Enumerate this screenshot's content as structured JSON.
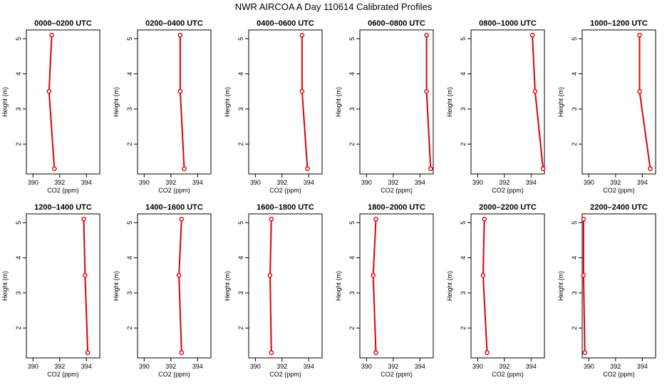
{
  "figure": {
    "title": "NWR AIRCOA A  Day 110614  Calibrated Profiles",
    "colors": {
      "line": "#e00000",
      "axis": "#000000",
      "background": "#ffffff"
    }
  },
  "chart_data": [
    {
      "type": "line",
      "title": "0000–0200 UTC",
      "xlabel": "CO2 (ppm)",
      "ylabel": "Height (m)",
      "xlim": [
        389.5,
        395.0
      ],
      "ylim": [
        1.15,
        5.25
      ],
      "xticks": [
        390,
        392,
        394
      ],
      "yticks": [
        2,
        3,
        4,
        5
      ],
      "grid": false,
      "series": [
        {
          "x": [
            391.4,
            391.2,
            391.6
          ],
          "y": [
            5.1,
            3.5,
            1.3
          ]
        }
      ]
    },
    {
      "type": "line",
      "title": "0200–0400 UTC",
      "xlabel": "CO2 (ppm)",
      "ylabel": "Height (m)",
      "xlim": [
        389.5,
        395.0
      ],
      "ylim": [
        1.15,
        5.25
      ],
      "xticks": [
        390,
        392,
        394
      ],
      "yticks": [
        2,
        3,
        4,
        5
      ],
      "grid": false,
      "series": [
        {
          "x": [
            392.7,
            392.7,
            393.0
          ],
          "y": [
            5.1,
            3.5,
            1.3
          ]
        }
      ]
    },
    {
      "type": "line",
      "title": "0400–0600 UTC",
      "xlabel": "CO2 (ppm)",
      "ylabel": "Height (m)",
      "xlim": [
        389.5,
        395.0
      ],
      "ylim": [
        1.15,
        5.25
      ],
      "xticks": [
        390,
        392,
        394
      ],
      "yticks": [
        2,
        3,
        4,
        5
      ],
      "grid": false,
      "series": [
        {
          "x": [
            393.5,
            393.5,
            393.9
          ],
          "y": [
            5.1,
            3.5,
            1.3
          ]
        }
      ]
    },
    {
      "type": "line",
      "title": "0600–0800 UTC",
      "xlabel": "CO2 (ppm)",
      "ylabel": "Height (m)",
      "xlim": [
        389.5,
        395.0
      ],
      "ylim": [
        1.15,
        5.25
      ],
      "xticks": [
        390,
        392,
        394
      ],
      "yticks": [
        2,
        3,
        4,
        5
      ],
      "grid": false,
      "series": [
        {
          "x": [
            394.5,
            394.5,
            394.8
          ],
          "y": [
            5.1,
            3.5,
            1.3
          ]
        }
      ]
    },
    {
      "type": "line",
      "title": "0800–1000 UTC",
      "xlabel": "CO2 (ppm)",
      "ylabel": "Height (m)",
      "xlim": [
        389.5,
        395.0
      ],
      "ylim": [
        1.15,
        5.25
      ],
      "xticks": [
        390,
        392,
        394
      ],
      "yticks": [
        2,
        3,
        4,
        5
      ],
      "grid": false,
      "series": [
        {
          "x": [
            394.1,
            394.3,
            394.9
          ],
          "y": [
            5.1,
            3.5,
            1.3
          ]
        }
      ]
    },
    {
      "type": "line",
      "title": "1000–1200 UTC",
      "xlabel": "CO2 (ppm)",
      "ylabel": "Height (m)",
      "xlim": [
        389.5,
        395.0
      ],
      "ylim": [
        1.15,
        5.25
      ],
      "xticks": [
        390,
        392,
        394
      ],
      "yticks": [
        2,
        3,
        4,
        5
      ],
      "grid": false,
      "series": [
        {
          "x": [
            393.8,
            393.8,
            394.6
          ],
          "y": [
            5.1,
            3.5,
            1.3
          ]
        }
      ]
    },
    {
      "type": "line",
      "title": "1200–1400 UTC",
      "xlabel": "CO2 (ppm)",
      "ylabel": "Height (m)",
      "xlim": [
        389.5,
        395.0
      ],
      "ylim": [
        1.15,
        5.25
      ],
      "xticks": [
        390,
        392,
        394
      ],
      "yticks": [
        2,
        3,
        4,
        5
      ],
      "grid": false,
      "series": [
        {
          "x": [
            393.8,
            393.9,
            394.1
          ],
          "y": [
            5.1,
            3.5,
            1.3
          ]
        }
      ]
    },
    {
      "type": "line",
      "title": "1400–1600 UTC",
      "xlabel": "CO2 (ppm)",
      "ylabel": "Height (m)",
      "xlim": [
        389.5,
        395.0
      ],
      "ylim": [
        1.15,
        5.25
      ],
      "xticks": [
        390,
        392,
        394
      ],
      "yticks": [
        2,
        3,
        4,
        5
      ],
      "grid": false,
      "series": [
        {
          "x": [
            392.8,
            392.6,
            392.8
          ],
          "y": [
            5.1,
            3.5,
            1.3
          ]
        }
      ]
    },
    {
      "type": "line",
      "title": "1600–1800 UTC",
      "xlabel": "CO2 (ppm)",
      "ylabel": "Height (m)",
      "xlim": [
        389.5,
        395.0
      ],
      "ylim": [
        1.15,
        5.25
      ],
      "xticks": [
        390,
        392,
        394
      ],
      "yticks": [
        2,
        3,
        4,
        5
      ],
      "grid": false,
      "series": [
        {
          "x": [
            391.2,
            391.1,
            391.2
          ],
          "y": [
            5.1,
            3.5,
            1.3
          ]
        }
      ]
    },
    {
      "type": "line",
      "title": "1800–2000 UTC",
      "xlabel": "CO2 (ppm)",
      "ylabel": "Height (m)",
      "xlim": [
        389.5,
        395.0
      ],
      "ylim": [
        1.15,
        5.25
      ],
      "xticks": [
        390,
        392,
        394
      ],
      "yticks": [
        2,
        3,
        4,
        5
      ],
      "grid": false,
      "series": [
        {
          "x": [
            390.7,
            390.5,
            390.7
          ],
          "y": [
            5.1,
            3.5,
            1.3
          ]
        }
      ]
    },
    {
      "type": "line",
      "title": "2000–2200 UTC",
      "xlabel": "CO2 (ppm)",
      "ylabel": "Height (m)",
      "xlim": [
        389.5,
        395.0
      ],
      "ylim": [
        1.15,
        5.25
      ],
      "xticks": [
        390,
        392,
        394
      ],
      "yticks": [
        2,
        3,
        4,
        5
      ],
      "grid": false,
      "series": [
        {
          "x": [
            390.5,
            390.4,
            390.7
          ],
          "y": [
            5.1,
            3.5,
            1.3
          ]
        }
      ]
    },
    {
      "type": "line",
      "title": "2200–2400 UTC",
      "xlabel": "CO2 (ppm)",
      "ylabel": "Height (m)",
      "xlim": [
        389.5,
        395.0
      ],
      "ylim": [
        1.15,
        5.25
      ],
      "xticks": [
        390,
        392,
        394
      ],
      "yticks": [
        2,
        3,
        4,
        5
      ],
      "grid": false,
      "series": [
        {
          "x": [
            389.6,
            389.6,
            389.7
          ],
          "y": [
            5.1,
            3.5,
            1.3
          ]
        }
      ]
    }
  ]
}
